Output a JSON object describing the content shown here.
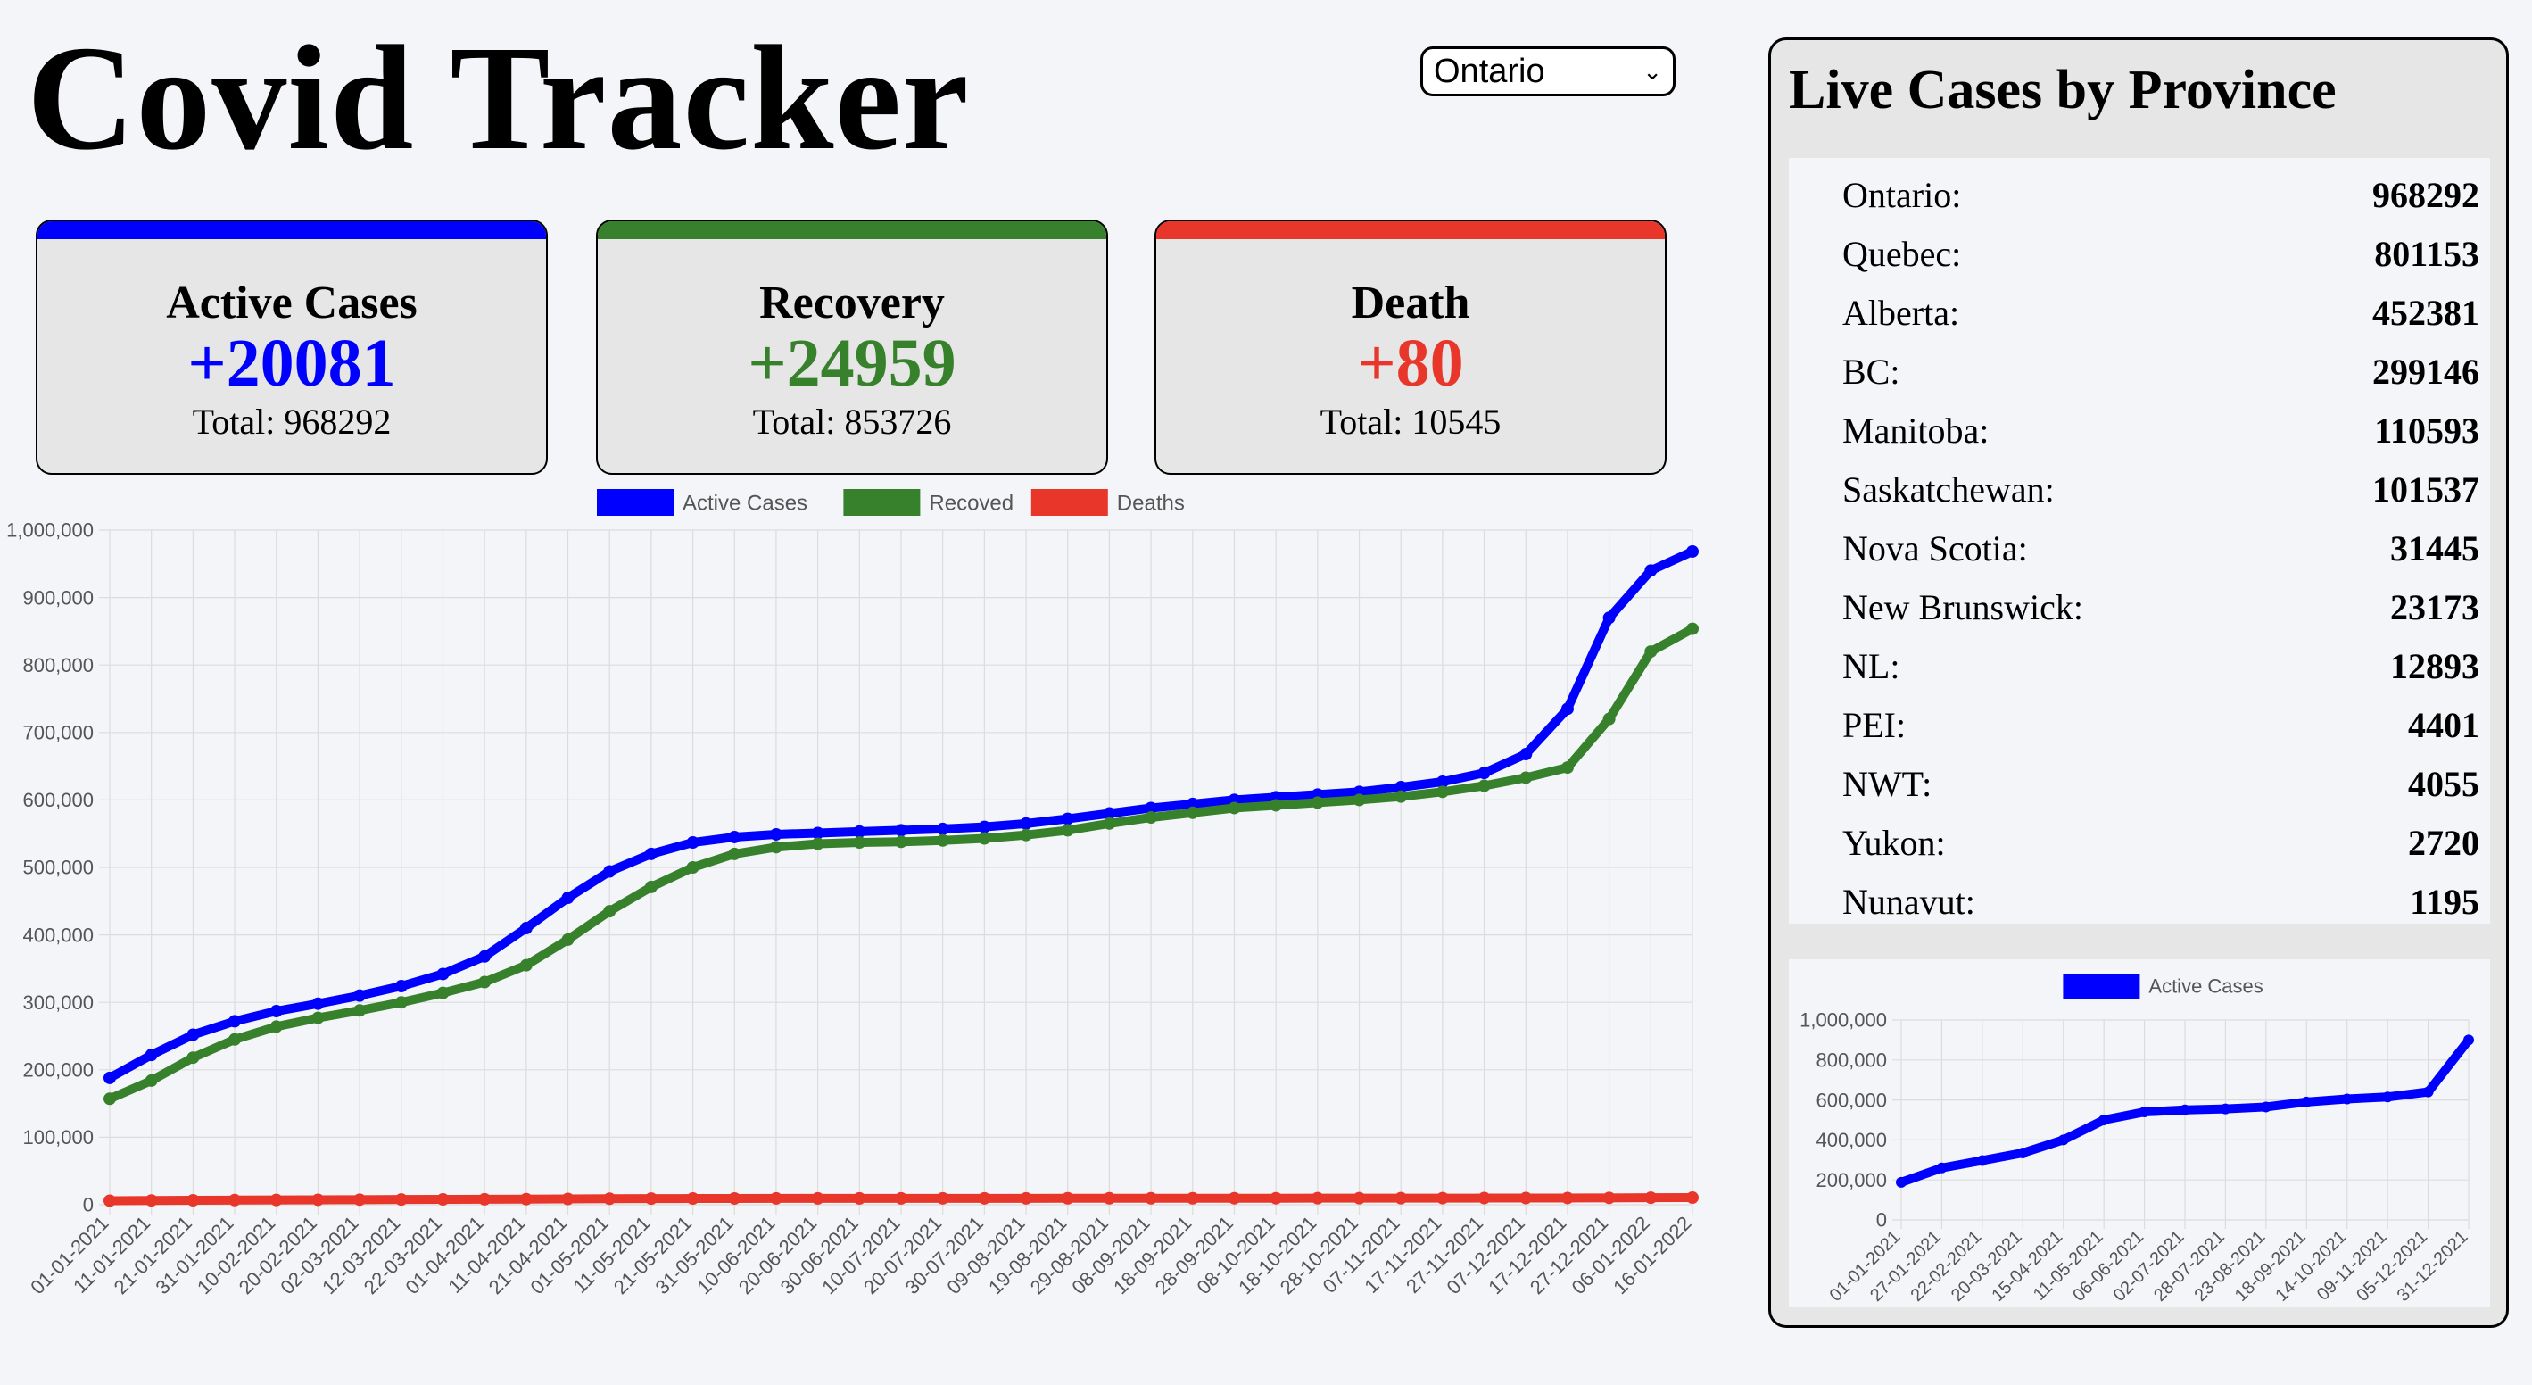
{
  "app": {
    "title": "Covid Tracker"
  },
  "province_select": {
    "selected": "Ontario"
  },
  "cards": [
    {
      "title": "Active Cases",
      "delta": "+20081",
      "total": "Total: 968292",
      "color": "#0000ff"
    },
    {
      "title": "Recovery",
      "delta": "+24959",
      "total": "Total: 853726",
      "color": "#37812c"
    },
    {
      "title": "Death",
      "delta": "+80",
      "total": "Total: 10545",
      "color": "#e9362b"
    }
  ],
  "sidebar": {
    "title": "Live Cases by Province",
    "provinces": [
      {
        "name": "Ontario:",
        "value": "968292"
      },
      {
        "name": "Quebec:",
        "value": "801153"
      },
      {
        "name": "Alberta:",
        "value": "452381"
      },
      {
        "name": "BC:",
        "value": "299146"
      },
      {
        "name": "Manitoba:",
        "value": "110593"
      },
      {
        "name": "Saskatchewan:",
        "value": "101537"
      },
      {
        "name": "Nova Scotia:",
        "value": "31445"
      },
      {
        "name": "New Brunswick:",
        "value": "23173"
      },
      {
        "name": "NL:",
        "value": "12893"
      },
      {
        "name": "PEI:",
        "value": "4401"
      },
      {
        "name": "NWT:",
        "value": "4055"
      },
      {
        "name": "Yukon:",
        "value": "2720"
      },
      {
        "name": "Nunavut:",
        "value": "1195"
      }
    ]
  },
  "chart_data": [
    {
      "type": "line",
      "x": [
        "01-01-2021",
        "11-01-2021",
        "21-01-2021",
        "31-01-2021",
        "10-02-2021",
        "20-02-2021",
        "02-03-2021",
        "12-03-2021",
        "22-03-2021",
        "01-04-2021",
        "11-04-2021",
        "21-04-2021",
        "01-05-2021",
        "11-05-2021",
        "21-05-2021",
        "31-05-2021",
        "10-06-2021",
        "20-06-2021",
        "30-06-2021",
        "10-07-2021",
        "20-07-2021",
        "30-07-2021",
        "09-08-2021",
        "19-08-2021",
        "29-08-2021",
        "08-09-2021",
        "18-09-2021",
        "28-09-2021",
        "08-10-2021",
        "18-10-2021",
        "28-10-2021",
        "07-11-2021",
        "17-11-2021",
        "27-11-2021",
        "07-12-2021",
        "17-12-2021",
        "27-12-2021",
        "06-01-2022",
        "16-01-2022"
      ],
      "series": [
        {
          "name": "Active Cases",
          "color": "#0000ff",
          "values": [
            188000,
            222000,
            252000,
            272000,
            287000,
            298000,
            310000,
            324000,
            342000,
            368000,
            410000,
            455000,
            494000,
            520000,
            537000,
            545000,
            549000,
            551000,
            553000,
            555000,
            557000,
            560000,
            565000,
            572000,
            580000,
            588000,
            594000,
            600000,
            604000,
            608000,
            612000,
            619000,
            627000,
            640000,
            668000,
            735000,
            870000,
            940000,
            968292
          ]
        },
        {
          "name": "Recoved",
          "color": "#37812c",
          "values": [
            157000,
            184000,
            218000,
            245000,
            264000,
            277000,
            288000,
            300000,
            314000,
            330000,
            355000,
            393000,
            435000,
            471000,
            500000,
            520000,
            530000,
            535000,
            537000,
            538000,
            540000,
            543000,
            548000,
            555000,
            565000,
            574000,
            581000,
            588000,
            592000,
            596000,
            600000,
            605000,
            612000,
            621000,
            633000,
            648000,
            720000,
            820000,
            853726
          ]
        },
        {
          "name": "Deaths",
          "color": "#e9362b",
          "values": [
            6000,
            6300,
            6600,
            6900,
            7100,
            7300,
            7500,
            7700,
            7900,
            8100,
            8300,
            8600,
            8900,
            9100,
            9200,
            9300,
            9350,
            9400,
            9420,
            9440,
            9460,
            9480,
            9500,
            9520,
            9540,
            9570,
            9600,
            9630,
            9660,
            9690,
            9720,
            9760,
            9800,
            9850,
            9900,
            9980,
            10150,
            10400,
            10545
          ]
        }
      ],
      "ylim": [
        0,
        1000000
      ],
      "yticks": [
        "1,000,000",
        "900,000",
        "800,000",
        "700,000",
        "600,000",
        "500,000",
        "400,000",
        "300,000",
        "200,000",
        "100,000",
        "0"
      ],
      "legend_position": "top",
      "grid": true
    },
    {
      "type": "line",
      "x": [
        "01-01-2021",
        "27-01-2021",
        "22-02-2021",
        "20-03-2021",
        "15-04-2021",
        "11-05-2021",
        "06-06-2021",
        "02-07-2021",
        "28-07-2021",
        "23-08-2021",
        "18-09-2021",
        "14-10-2021",
        "09-11-2021",
        "05-12-2021",
        "31-12-2021"
      ],
      "series": [
        {
          "name": "Active Cases",
          "color": "#0000ff",
          "values": [
            188000,
            260000,
            297000,
            335000,
            400000,
            500000,
            540000,
            550000,
            555000,
            565000,
            590000,
            605000,
            615000,
            640000,
            900000
          ]
        }
      ],
      "ylim": [
        0,
        1000000
      ],
      "yticks": [
        "1,000,000",
        "800,000",
        "600,000",
        "400,000",
        "200,000",
        "0"
      ],
      "legend_position": "top",
      "grid": true
    }
  ]
}
